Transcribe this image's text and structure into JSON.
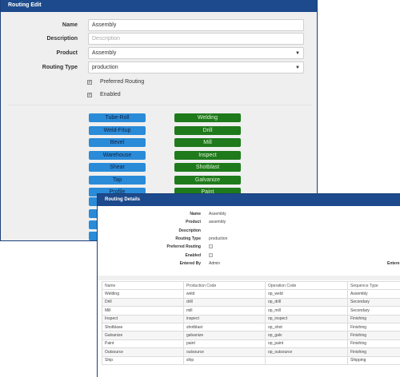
{
  "edit": {
    "title": "Routing Edit",
    "name_label": "Name",
    "name_value": "Assembly",
    "description_label": "Description",
    "description_placeholder": "Description",
    "product_label": "Product",
    "product_value": "Assembly",
    "routing_type_label": "Routing Type",
    "routing_type_value": "production",
    "preferred_label": "Preferred Routing",
    "enabled_label": "Enabled",
    "blue_buttons": [
      "Tube-Roll",
      "Weld-Fitup",
      "Bevel",
      "Warehouse",
      "Shear",
      "Tap",
      "Profile"
    ],
    "green_buttons": [
      "Welding",
      "Drill",
      "Mill",
      "Inspect",
      "Shotblast",
      "Galvanize",
      "Paint"
    ]
  },
  "details": {
    "title": "Routing Details",
    "fields": {
      "name_label": "Name",
      "name_value": "Assembly",
      "product_label": "Product",
      "product_value": "assembly",
      "description_label": "Description",
      "routing_type_label": "Routing Type",
      "routing_type_value": "production",
      "preferred_label": "Preferred Routing",
      "enabled_label": "Enabled",
      "entered_by_label": "Entered By",
      "entered_by_value": "Admin",
      "entered_label_partial": "Entere"
    },
    "table": {
      "headers": [
        "Name",
        "Production Code",
        "Operation Code",
        "Sequence Type"
      ],
      "rows": [
        [
          "Welding",
          "weld",
          "op_weld",
          "Assembly"
        ],
        [
          "Drill",
          "drill",
          "op_drill",
          "Secondary"
        ],
        [
          "Mill",
          "mill",
          "op_mill",
          "Secondary"
        ],
        [
          "Inspect",
          "inspect",
          "op_inspect",
          "Finishing"
        ],
        [
          "Shotblase",
          "shotblast",
          "op_shot",
          "Finishing"
        ],
        [
          "Galvanize",
          "galvanize",
          "op_galv",
          "Finishing"
        ],
        [
          "Paint",
          "paint",
          "op_paint",
          "Finishing"
        ],
        [
          "Outsource",
          "outsource",
          "op_outsource",
          "Finishing"
        ],
        [
          "Ship",
          "ship",
          "",
          "Shipping"
        ]
      ]
    }
  }
}
